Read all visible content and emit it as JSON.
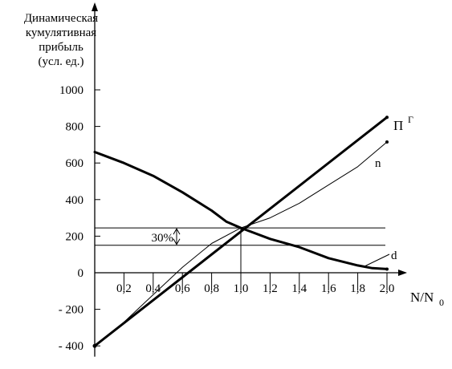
{
  "chart_data": {
    "type": "line",
    "ylabel": [
      "Динамическая",
      "кумулятивная",
      "прибыль",
      "(усл. ед.)"
    ],
    "xlabel": "N/N0",
    "xlabel_main": "N/N",
    "xlabel_sub": "0",
    "xlim": [
      0,
      2.1
    ],
    "ylim": [
      -450,
      1150
    ],
    "y_ticks": [
      1000,
      800,
      600,
      400,
      200,
      0,
      -200,
      -400
    ],
    "y_tick_labels": [
      "1000",
      "800",
      "600",
      "400",
      "200",
      "0",
      "- 200",
      "- 400"
    ],
    "x_ticks": [
      0.2,
      0.4,
      0.6,
      0.8,
      1.0,
      1.2,
      1.4,
      1.6,
      1.8,
      2.0
    ],
    "x_tick_labels": [
      "0,2",
      "0,4",
      "0,6",
      "0,8",
      "1,0",
      "1,2",
      "1,4",
      "1,6",
      "1,8",
      "2,0"
    ],
    "grid": false,
    "legend": "none",
    "series": [
      {
        "name": "П",
        "name_sup": "Г",
        "style": "thick",
        "x": [
          0,
          2.0
        ],
        "y": [
          -400,
          850
        ]
      },
      {
        "name": "n",
        "style": "thin",
        "x": [
          0.2,
          0.4,
          0.6,
          0.8,
          1.0,
          1.2,
          1.4,
          1.6,
          1.8,
          2.0
        ],
        "y": [
          -270,
          -120,
          30,
          160,
          245,
          300,
          380,
          480,
          580,
          715
        ]
      },
      {
        "name": "d",
        "style": "thick",
        "x": [
          0,
          0.2,
          0.4,
          0.6,
          0.8,
          0.9,
          1.0,
          1.2,
          1.4,
          1.6,
          1.8,
          1.9,
          2.0
        ],
        "y": [
          660,
          600,
          530,
          440,
          340,
          280,
          245,
          185,
          140,
          80,
          40,
          25,
          20
        ]
      }
    ],
    "reference_lines": [
      {
        "y": 245,
        "x_range": [
          0,
          2.0
        ]
      },
      {
        "y": 150,
        "x_range": [
          0,
          2.0
        ]
      }
    ],
    "vertical_reference": {
      "x": 1.0,
      "y_range": [
        0,
        245
      ]
    },
    "annotation": {
      "text": "30%",
      "y_from": 150,
      "y_to": 245,
      "x": 0.55
    }
  }
}
